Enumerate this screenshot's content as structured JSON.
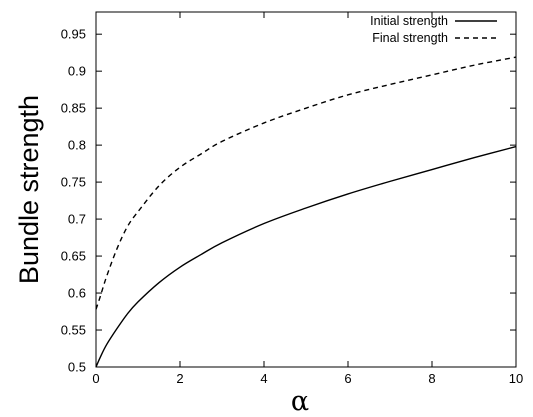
{
  "chart_data": {
    "type": "line",
    "title": "",
    "xlabel": "α",
    "ylabel": "Bundle strength",
    "xlim": [
      0,
      10
    ],
    "ylim": [
      0.5,
      0.98
    ],
    "x_ticks": [
      0,
      2,
      4,
      6,
      8,
      10
    ],
    "x_tick_labels": [
      "0",
      "2",
      "4",
      "6",
      "8",
      "10"
    ],
    "y_ticks": [
      0.5,
      0.55,
      0.6,
      0.65,
      0.7,
      0.75,
      0.8,
      0.85,
      0.9,
      0.95
    ],
    "y_tick_labels": [
      "0.5",
      "0.55",
      "0.6",
      "0.65",
      "0.7",
      "0.75",
      "0.8",
      "0.85",
      "0.9",
      "0.95"
    ],
    "grid": false,
    "legend_position": "top-right",
    "series": [
      {
        "name": "Initial strength",
        "style": "solid",
        "color": "#000000",
        "x": [
          0,
          0.1,
          0.25,
          0.5,
          0.75,
          1,
          1.5,
          2,
          2.5,
          3,
          4,
          5,
          6,
          7,
          8,
          9,
          10
        ],
        "y": [
          0.5,
          0.513,
          0.53,
          0.552,
          0.572,
          0.588,
          0.614,
          0.635,
          0.652,
          0.668,
          0.694,
          0.715,
          0.734,
          0.751,
          0.767,
          0.783,
          0.798
        ]
      },
      {
        "name": "Final strength",
        "style": "dashed",
        "color": "#000000",
        "x": [
          0,
          0.1,
          0.25,
          0.5,
          0.75,
          1,
          1.5,
          2,
          2.5,
          3,
          4,
          5,
          6,
          7,
          8,
          9,
          10
        ],
        "y": [
          0.578,
          0.595,
          0.622,
          0.66,
          0.69,
          0.71,
          0.745,
          0.77,
          0.788,
          0.805,
          0.83,
          0.85,
          0.868,
          0.882,
          0.895,
          0.908,
          0.919
        ]
      }
    ]
  }
}
